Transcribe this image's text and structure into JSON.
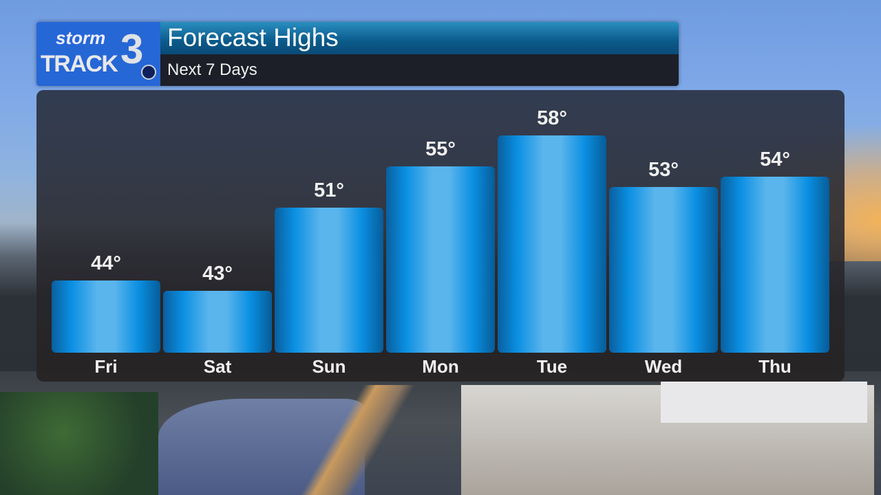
{
  "header": {
    "logo_text": "stormTRACK3",
    "title": "Forecast Highs",
    "subtitle": "Next 7 Days"
  },
  "colors": {
    "bar": "#0a8fe2",
    "logo_bg": "#2667d6"
  },
  "chart_data": {
    "type": "bar",
    "title": "Forecast Highs",
    "subtitle": "Next 7 Days",
    "categories": [
      "Fri",
      "Sat",
      "Sun",
      "Mon",
      "Tue",
      "Wed",
      "Thu"
    ],
    "values": [
      44,
      43,
      51,
      55,
      58,
      53,
      54
    ],
    "labels": [
      "44°",
      "43°",
      "51°",
      "55°",
      "58°",
      "53°",
      "54°"
    ],
    "ylim": [
      37,
      62
    ],
    "grid": false,
    "legend": "none"
  }
}
